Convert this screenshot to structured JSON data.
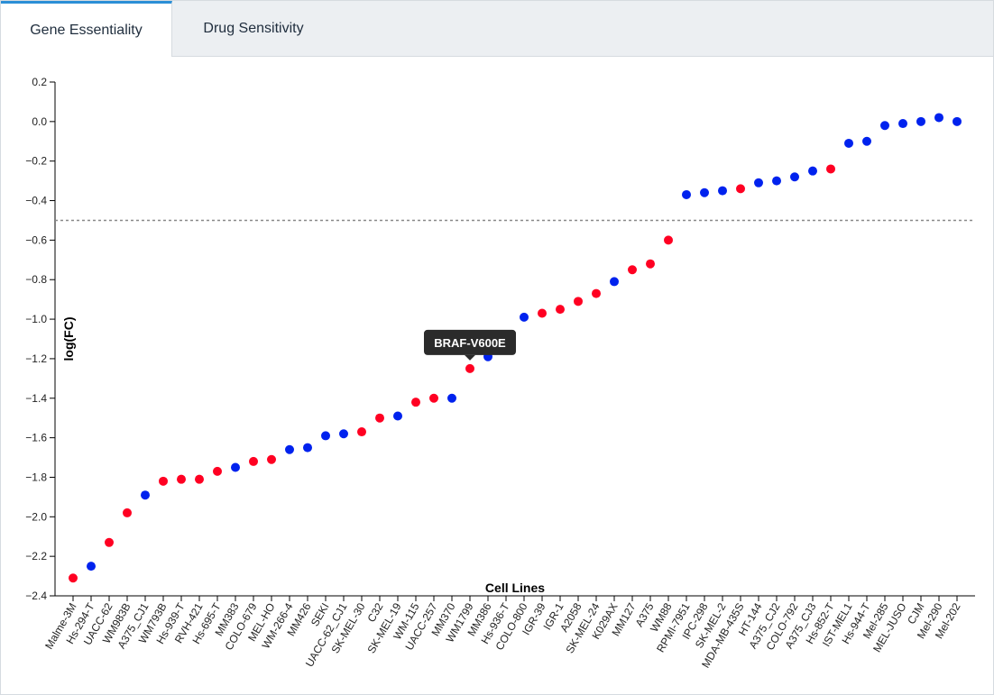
{
  "tabs": [
    {
      "label": "Gene Essentiality",
      "active": true
    },
    {
      "label": "Drug Sensitivity",
      "active": false
    }
  ],
  "colors": {
    "mutant": "#ff0022",
    "wildtype": "#0022ee",
    "threshold": "#888888",
    "tooltip_bg": "#2b2b2b",
    "tab_accent": "#2b8fd6"
  },
  "chart_data": {
    "type": "scatter",
    "xlabel": "Cell Lines",
    "ylabel": "log(FC)",
    "ylim": [
      -2.4,
      0.2
    ],
    "yticks": [
      0.2,
      0.0,
      -0.2,
      -0.4,
      -0.6,
      -0.8,
      -1.0,
      -1.2,
      -1.4,
      -1.6,
      -1.8,
      -2.0,
      -2.2,
      -2.4
    ],
    "ytick_labels": [
      "0.2",
      "0.0",
      "−0.2",
      "−0.4",
      "−0.6",
      "−0.8",
      "−1.0",
      "−1.2",
      "−1.4",
      "−1.6",
      "−1.8",
      "−2.0",
      "−2.2",
      "−2.4"
    ],
    "threshold": -0.5,
    "grid": false,
    "categories": [
      "Malme-3M",
      "Hs-294-T",
      "UACC-62",
      "WM983B",
      "A375_CJ1",
      "WM793B",
      "Hs-939-T",
      "RVH-421",
      "Hs-695-T",
      "MM383",
      "COLO-679",
      "MEL-HO",
      "WM-266-4",
      "MM426",
      "SEKI",
      "UACC-62_CJ1",
      "SK-MEL-30",
      "C32",
      "SK-MEL-19",
      "WM-115",
      "UACC-257",
      "MM370",
      "WM1799",
      "MM386",
      "Hs-936-T",
      "COLO-800",
      "IGR-39",
      "IGR-1",
      "A2058",
      "SK-MEL-24",
      "K029AX",
      "MM127",
      "A375",
      "WM88",
      "RPMI-7951",
      "IPC-298",
      "SK-MEL-2",
      "MDA-MB-435S",
      "HT-144",
      "A375_CJ2",
      "COLO-792",
      "A375_CJ3",
      "Hs-852-T",
      "IST-MEL1",
      "Hs-944-T",
      "Mel-285",
      "MEL-JUSO",
      "CJM",
      "Mel-290",
      "Mel-202"
    ],
    "values": [
      -2.31,
      -2.25,
      -2.13,
      -1.98,
      -1.89,
      -1.82,
      -1.81,
      -1.81,
      -1.77,
      -1.75,
      -1.72,
      -1.71,
      -1.66,
      -1.65,
      -1.59,
      -1.58,
      -1.57,
      -1.5,
      -1.49,
      -1.42,
      -1.4,
      -1.4,
      -1.25,
      -1.19,
      -1.14,
      -0.99,
      -0.97,
      -0.95,
      -0.91,
      -0.87,
      -0.81,
      -0.75,
      -0.72,
      -0.6,
      -0.37,
      -0.36,
      -0.35,
      -0.34,
      -0.31,
      -0.3,
      -0.28,
      -0.25,
      -0.24,
      -0.11,
      -0.1,
      -0.02,
      -0.01,
      0.0,
      0.02,
      0.0
    ],
    "groups": [
      "mutant",
      "wildtype",
      "mutant",
      "mutant",
      "wildtype",
      "mutant",
      "mutant",
      "mutant",
      "mutant",
      "wildtype",
      "mutant",
      "mutant",
      "wildtype",
      "wildtype",
      "wildtype",
      "wildtype",
      "mutant",
      "mutant",
      "wildtype",
      "mutant",
      "mutant",
      "wildtype",
      "mutant",
      "wildtype",
      "mutant",
      "wildtype",
      "mutant",
      "mutant",
      "mutant",
      "mutant",
      "wildtype",
      "mutant",
      "mutant",
      "mutant",
      "wildtype",
      "wildtype",
      "wildtype",
      "mutant",
      "wildtype",
      "wildtype",
      "wildtype",
      "wildtype",
      "mutant",
      "wildtype",
      "wildtype",
      "wildtype",
      "wildtype",
      "wildtype",
      "wildtype",
      "wildtype"
    ],
    "tooltip": {
      "text": "BRAF-V600E",
      "point_index": 22
    }
  }
}
